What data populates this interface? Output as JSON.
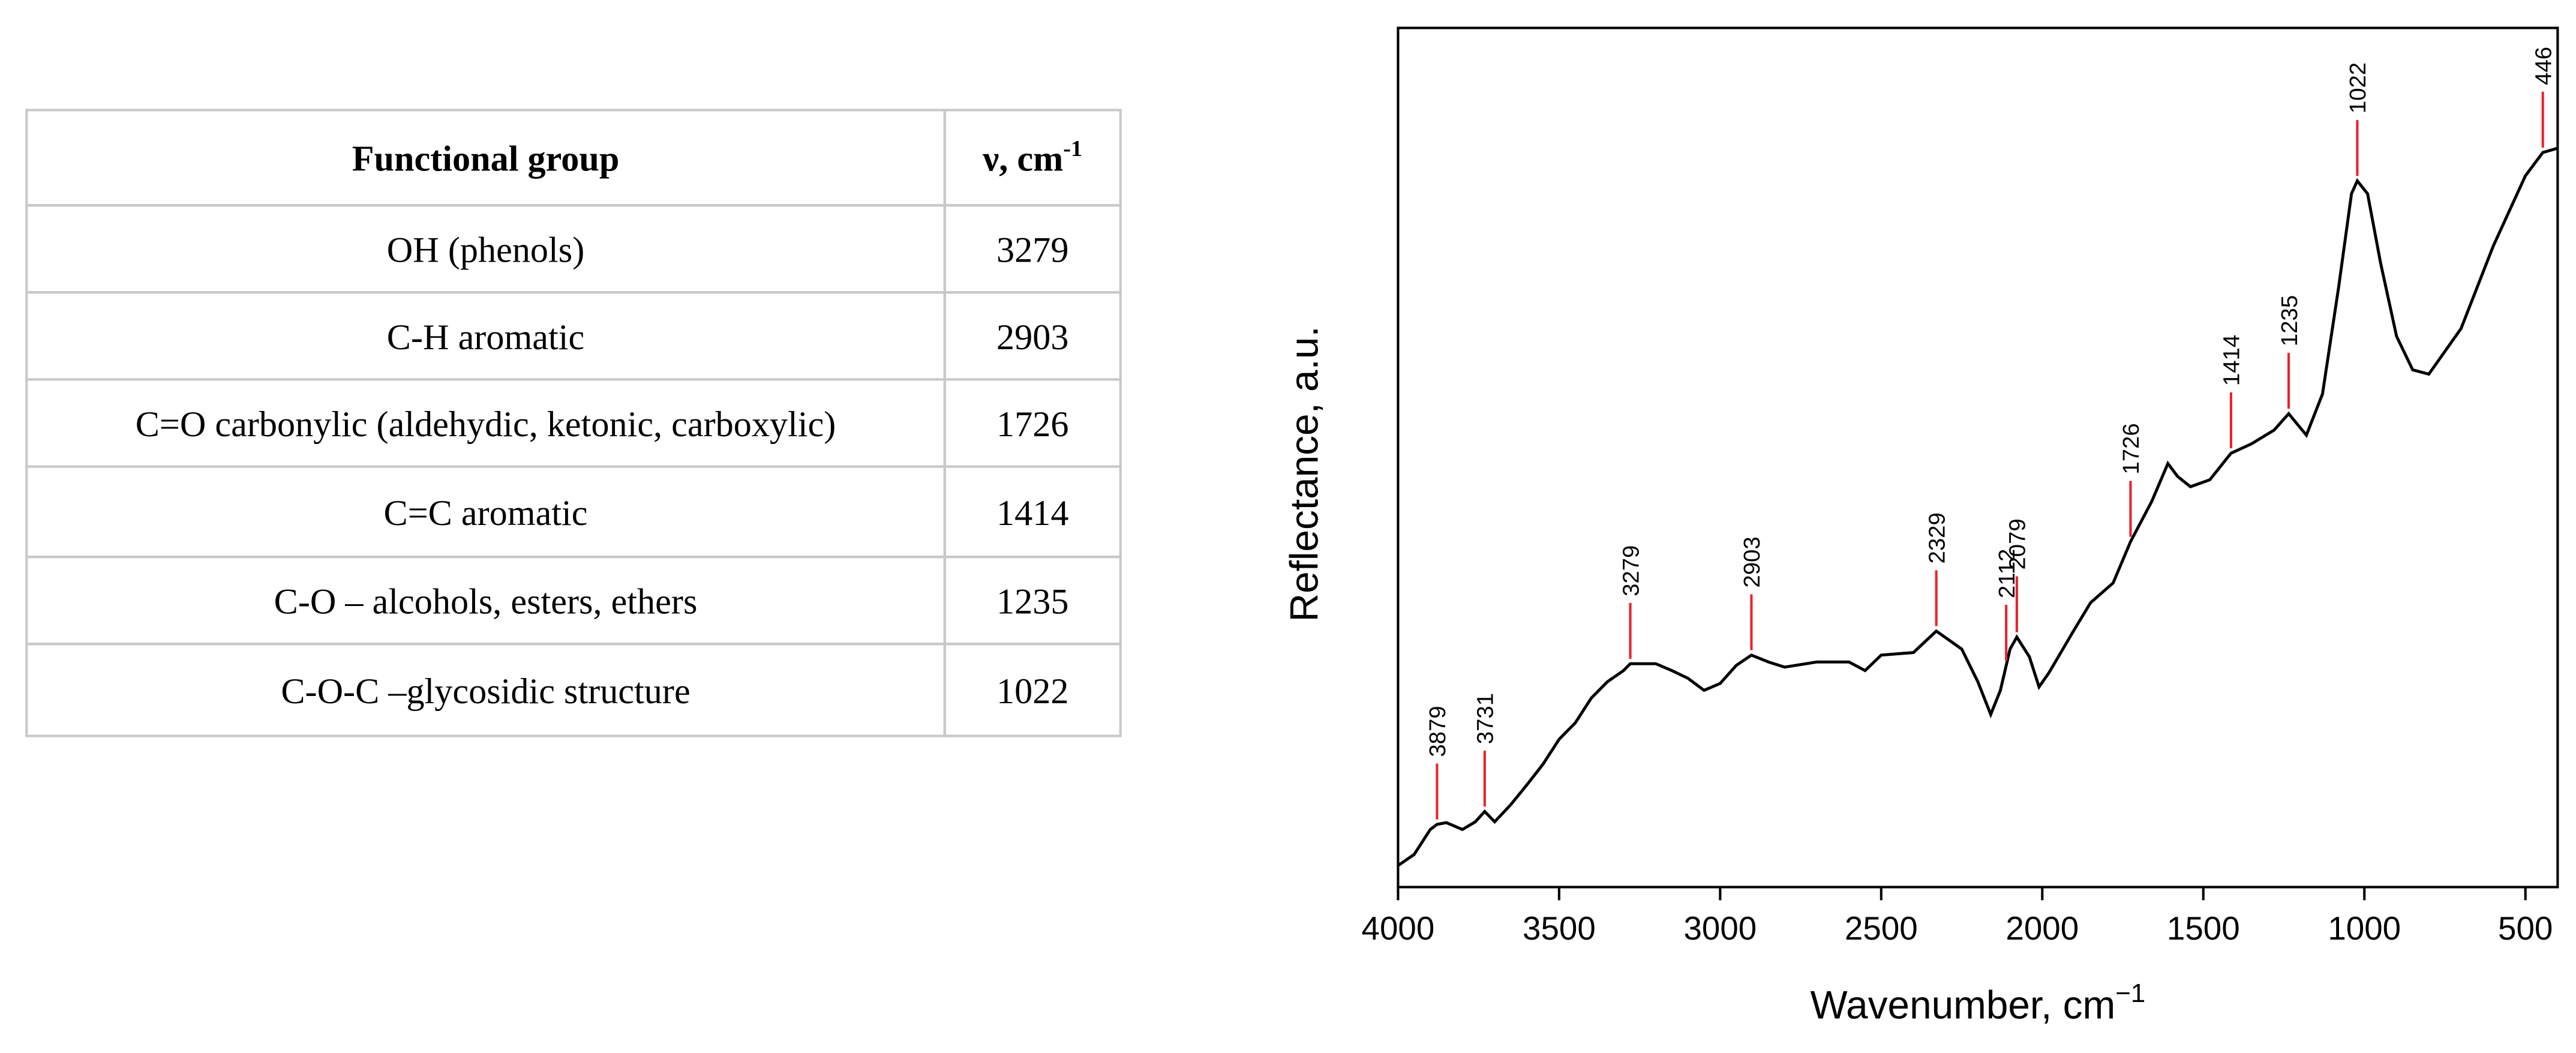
{
  "table": {
    "header": [
      {
        "text": "Functional group"
      },
      {
        "text": "ν, cm",
        "sup": "-1"
      }
    ],
    "rows": [
      [
        "OH (phenols)",
        "3279"
      ],
      [
        "C-H aromatic",
        "2903"
      ],
      [
        "C=O carbonylic (aldehydic, ketonic, carboxylic)",
        "1726"
      ],
      [
        "C=C aromatic",
        "1414"
      ],
      [
        "C-O – alcohols, esters, ethers",
        "1235"
      ],
      [
        "C-O-C –glycosidic structure",
        "1022"
      ]
    ]
  },
  "chart_data": {
    "type": "line",
    "x_label": "Wavenumber, cm",
    "x_label_sup": "−1",
    "y_label": "Reflectance, a.u.",
    "xlim": [
      4000,
      400
    ],
    "xticks": [
      4000,
      3500,
      3000,
      2500,
      2000,
      1500,
      1000,
      500
    ],
    "ylim": [
      0,
      100
    ],
    "color": "#000000",
    "peak_color": "#e8242c",
    "x": [
      4000,
      3950,
      3900,
      3879,
      3850,
      3800,
      3760,
      3731,
      3700,
      3650,
      3600,
      3550,
      3500,
      3450,
      3400,
      3350,
      3300,
      3279,
      3200,
      3150,
      3100,
      3050,
      3000,
      2950,
      2903,
      2850,
      2800,
      2700,
      2600,
      2550,
      2500,
      2400,
      2329,
      2250,
      2200,
      2160,
      2130,
      2100,
      2079,
      2040,
      2010,
      1980,
      1900,
      1850,
      1780,
      1726,
      1660,
      1610,
      1580,
      1540,
      1480,
      1414,
      1350,
      1280,
      1235,
      1180,
      1130,
      1080,
      1040,
      1022,
      990,
      950,
      900,
      850,
      800,
      700,
      600,
      500,
      446,
      400
    ],
    "values": [
      2.5,
      3.8,
      6.7,
      7.3,
      7.5,
      6.7,
      7.6,
      8.8,
      7.6,
      9.6,
      11.9,
      14.3,
      17.2,
      19.1,
      22,
      23.9,
      25.2,
      26,
      26,
      25.2,
      24.3,
      22.9,
      23.7,
      25.8,
      27,
      26.2,
      25.6,
      26.2,
      26.2,
      25.2,
      27,
      27.3,
      29.8,
      27.7,
      23.9,
      20.1,
      22.9,
      27.7,
      29.1,
      26.8,
      23.3,
      24.9,
      30,
      33.1,
      35.4,
      40.2,
      44.9,
      49.3,
      47.8,
      46.6,
      47.4,
      50.5,
      51.6,
      53.2,
      55.1,
      52.6,
      57.4,
      69.8,
      80.7,
      82.2,
      80.7,
      72.7,
      64.1,
      60.2,
      59.7,
      65,
      74.6,
      82.8,
      85.5,
      86
    ],
    "peaks": [
      3879,
      3731,
      3279,
      2903,
      2329,
      2112,
      2079,
      1726,
      1414,
      1235,
      1022,
      446
    ]
  }
}
